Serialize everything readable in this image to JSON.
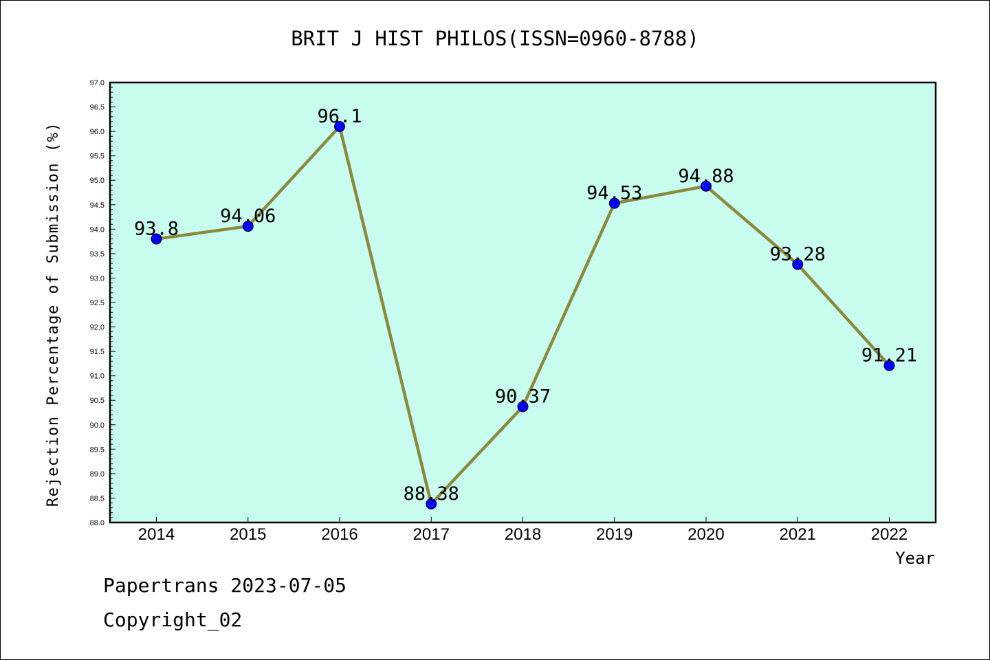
{
  "chart_data": {
    "type": "line",
    "title": "BRIT J HIST PHILOS(ISSN=0960-8788)",
    "xlabel": "Year",
    "ylabel": "Rejection Percentage of Submission (%)",
    "x": [
      2014,
      2015,
      2016,
      2017,
      2018,
      2019,
      2020,
      2021,
      2022
    ],
    "x_tick_labels": [
      "2014",
      "2015",
      "2016",
      "2017",
      "2018",
      "2019",
      "2020",
      "2021",
      "2022"
    ],
    "series": [
      {
        "values": [
          93.8,
          94.06,
          96.1,
          88.38,
          90.37,
          94.53,
          94.88,
          93.28,
          91.21
        ],
        "labels": [
          "93.8",
          "94.06",
          "96.1",
          "88.38",
          "90.37",
          "94.53",
          "94.88",
          "93.28",
          "91.21"
        ]
      }
    ],
    "ylim": [
      88.0,
      97.0
    ],
    "y_tick_labels": [
      "88.0",
      "88.5",
      "89.0",
      "89.5",
      "90.0",
      "90.5",
      "91.0",
      "91.5",
      "92.0",
      "92.5",
      "93.0",
      "93.5",
      "94.0",
      "94.5",
      "95.0",
      "95.5",
      "96.0",
      "96.5",
      "97.0"
    ],
    "grid": false,
    "colors": {
      "plot_background": "#c8fcee",
      "line": "#8b8a3c",
      "marker": "#0000ff"
    }
  },
  "footer": {
    "line1": "Papertrans 2023-07-05",
    "line2": "Copyright_02"
  }
}
